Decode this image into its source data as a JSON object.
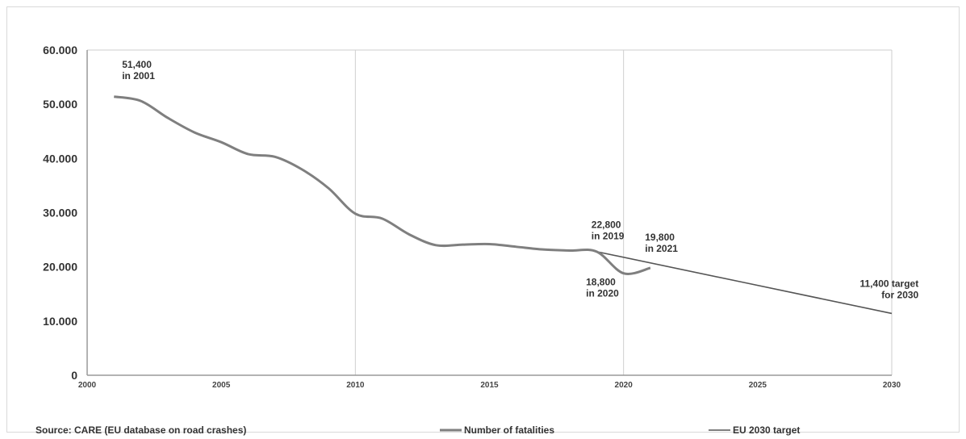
{
  "chart_data": {
    "type": "line",
    "title": "",
    "xlabel": "",
    "ylabel": "",
    "xlim": [
      2000,
      2030
    ],
    "ylim": [
      0,
      60000
    ],
    "x_ticks": [
      2000,
      2005,
      2010,
      2015,
      2020,
      2025,
      2030
    ],
    "x_tick_labels": [
      "2000",
      "2005",
      "2010",
      "2015",
      "2020",
      "2025",
      "2030"
    ],
    "y_ticks": [
      0,
      10000,
      20000,
      30000,
      40000,
      50000,
      60000
    ],
    "y_tick_labels": [
      "0",
      "10.000",
      "20.000",
      "30.000",
      "40.000",
      "50.000",
      "60.000"
    ],
    "vertical_gridlines": [
      2010,
      2020,
      2030
    ],
    "series": [
      {
        "name": "Number of fatalities",
        "color": "#7f7f7f",
        "points": [
          [
            2001,
            51400
          ],
          [
            2002,
            50600
          ],
          [
            2003,
            47500
          ],
          [
            2004,
            44800
          ],
          [
            2005,
            43000
          ],
          [
            2006,
            40800
          ],
          [
            2007,
            40300
          ],
          [
            2008,
            38000
          ],
          [
            2009,
            34500
          ],
          [
            2010,
            29800
          ],
          [
            2011,
            28900
          ],
          [
            2012,
            26000
          ],
          [
            2013,
            24000
          ],
          [
            2014,
            24100
          ],
          [
            2015,
            24200
          ],
          [
            2016,
            23700
          ],
          [
            2017,
            23200
          ],
          [
            2018,
            23000
          ],
          [
            2019,
            22800
          ],
          [
            2020,
            18800
          ],
          [
            2021,
            19800
          ]
        ]
      },
      {
        "name": "EU 2030 target",
        "color": "#555555",
        "points": [
          [
            2019,
            22800
          ],
          [
            2030,
            11400
          ]
        ]
      }
    ],
    "annotations": [
      {
        "id": "a2001",
        "lines": [
          "51,400",
          "in 2001"
        ]
      },
      {
        "id": "a2019",
        "lines": [
          "22,800",
          "in 2019"
        ]
      },
      {
        "id": "a2021",
        "lines": [
          "19,800",
          "in 2021"
        ]
      },
      {
        "id": "a2020",
        "lines": [
          "18,800",
          "in 2020"
        ]
      },
      {
        "id": "a2030",
        "lines": [
          "11,400 target",
          "for 2030"
        ]
      }
    ],
    "legend": {
      "placement": "bottom",
      "entries": [
        "Number of fatalities",
        "EU 2030 target"
      ]
    },
    "source": "Source: CARE (EU database on road crashes)"
  }
}
